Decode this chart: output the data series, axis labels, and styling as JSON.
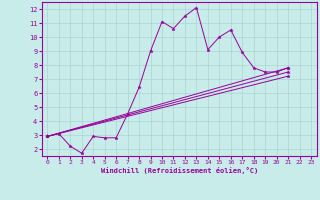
{
  "background_color": "#c8ecea",
  "grid_color": "#aad4d2",
  "line_color": "#990099",
  "marker": "*",
  "xlabel": "Windchill (Refroidissement éolien,°C)",
  "xlim": [
    -0.5,
    23.5
  ],
  "ylim": [
    1.5,
    12.5
  ],
  "yticks": [
    2,
    3,
    4,
    5,
    6,
    7,
    8,
    9,
    10,
    11,
    12
  ],
  "xticks": [
    0,
    1,
    2,
    3,
    4,
    5,
    6,
    7,
    8,
    9,
    10,
    11,
    12,
    13,
    14,
    15,
    16,
    17,
    18,
    19,
    20,
    21,
    22,
    23
  ],
  "series": [
    {
      "x": [
        0,
        1,
        2,
        3,
        4,
        5,
        6,
        7,
        8,
        9,
        10,
        11,
        12,
        13,
        14,
        15,
        16,
        17,
        18,
        19,
        20,
        21
      ],
      "y": [
        2.9,
        3.1,
        2.2,
        1.7,
        2.9,
        2.8,
        2.8,
        4.5,
        6.4,
        9.0,
        11.1,
        10.6,
        11.5,
        12.1,
        9.1,
        10.0,
        10.5,
        8.9,
        7.8,
        7.5,
        7.5,
        7.8
      ]
    },
    {
      "x": [
        0,
        21
      ],
      "y": [
        2.9,
        7.8
      ]
    },
    {
      "x": [
        0,
        21
      ],
      "y": [
        2.9,
        7.5
      ]
    },
    {
      "x": [
        0,
        21
      ],
      "y": [
        2.9,
        7.2
      ]
    }
  ]
}
